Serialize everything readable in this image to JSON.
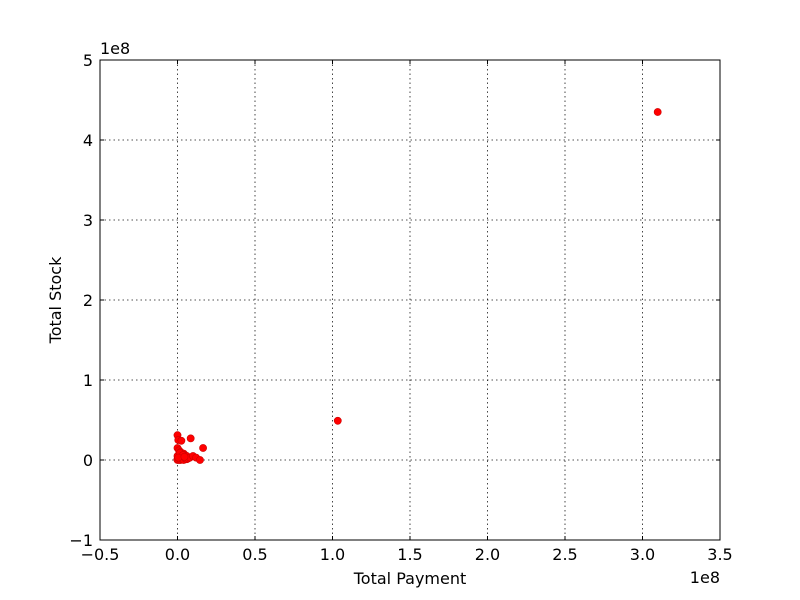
{
  "chart_data": {
    "type": "scatter",
    "xlabel": "Total Payment",
    "ylabel": "Total Stock",
    "x_multiplier_label": "1e8",
    "y_multiplier_label": "1e8",
    "xlim": [
      -0.5,
      3.5
    ],
    "ylim": [
      -1,
      5
    ],
    "x_ticks": [
      -0.5,
      0.0,
      0.5,
      1.0,
      1.5,
      2.0,
      2.5,
      3.0,
      3.5
    ],
    "x_tick_labels": [
      "−0.5",
      "0.0",
      "0.5",
      "1.0",
      "1.5",
      "2.0",
      "2.5",
      "3.0",
      "3.5"
    ],
    "y_ticks": [
      -1,
      0,
      1,
      2,
      3,
      4,
      5
    ],
    "y_tick_labels": [
      "−1",
      "0",
      "1",
      "2",
      "3",
      "4",
      "5"
    ],
    "grid": true,
    "marker_color": "#ff0000",
    "points": [
      {
        "x": 3.098,
        "y": 4.35
      },
      {
        "x": 1.034,
        "y": 0.49
      },
      {
        "x": 0.0,
        "y": 0.31
      },
      {
        "x": 0.005,
        "y": 0.25
      },
      {
        "x": 0.025,
        "y": 0.24
      },
      {
        "x": 0.085,
        "y": 0.27
      },
      {
        "x": 0.165,
        "y": 0.15
      },
      {
        "x": 0.0,
        "y": 0.15
      },
      {
        "x": 0.01,
        "y": 0.12
      },
      {
        "x": 0.02,
        "y": 0.1
      },
      {
        "x": 0.04,
        "y": 0.08
      },
      {
        "x": 0.05,
        "y": 0.06
      },
      {
        "x": 0.06,
        "y": 0.05
      },
      {
        "x": 0.01,
        "y": 0.07
      },
      {
        "x": 0.0,
        "y": 0.05
      },
      {
        "x": 0.02,
        "y": 0.04
      },
      {
        "x": 0.03,
        "y": 0.03
      },
      {
        "x": 0.01,
        "y": 0.02
      },
      {
        "x": 0.0,
        "y": 0.01
      },
      {
        "x": 0.0,
        "y": 0.0
      },
      {
        "x": 0.01,
        "y": 0.0
      },
      {
        "x": 0.02,
        "y": 0.0
      },
      {
        "x": 0.03,
        "y": 0.01
      },
      {
        "x": 0.04,
        "y": 0.0
      },
      {
        "x": 0.05,
        "y": 0.02
      },
      {
        "x": 0.06,
        "y": 0.01
      },
      {
        "x": 0.07,
        "y": 0.02
      },
      {
        "x": 0.08,
        "y": 0.03
      },
      {
        "x": 0.1,
        "y": 0.05
      },
      {
        "x": 0.12,
        "y": 0.03
      },
      {
        "x": 0.145,
        "y": 0.0
      },
      {
        "x": 0.015,
        "y": 0.09
      },
      {
        "x": 0.035,
        "y": 0.06
      },
      {
        "x": 0.005,
        "y": 0.03
      },
      {
        "x": 0.045,
        "y": 0.04
      }
    ]
  }
}
